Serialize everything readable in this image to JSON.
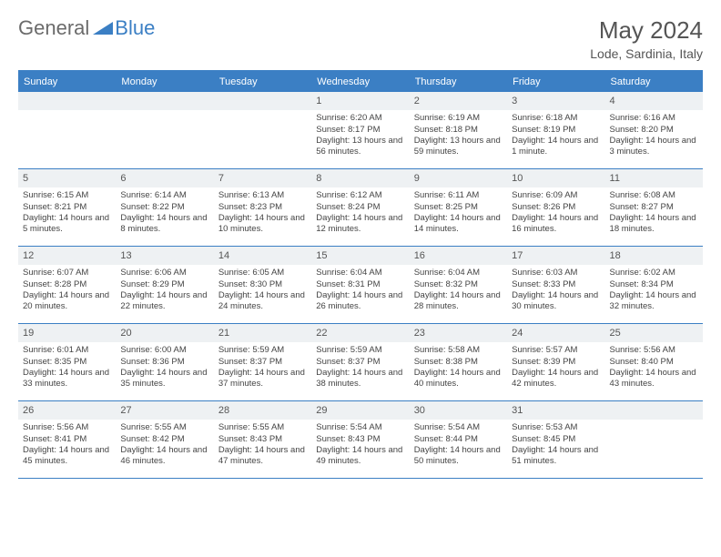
{
  "logo": {
    "text1": "General",
    "text2": "Blue"
  },
  "title": "May 2024",
  "location": "Lode, Sardinia, Italy",
  "colors": {
    "header_bg": "#3b7fc4",
    "header_text": "#ffffff",
    "daynum_bg": "#eef1f3",
    "border": "#3b7fc4",
    "body_text": "#444444",
    "title_text": "#555555"
  },
  "day_headers": [
    "Sunday",
    "Monday",
    "Tuesday",
    "Wednesday",
    "Thursday",
    "Friday",
    "Saturday"
  ],
  "weeks": [
    [
      {
        "n": "",
        "sr": "",
        "ss": "",
        "dl": ""
      },
      {
        "n": "",
        "sr": "",
        "ss": "",
        "dl": ""
      },
      {
        "n": "",
        "sr": "",
        "ss": "",
        "dl": ""
      },
      {
        "n": "1",
        "sr": "6:20 AM",
        "ss": "8:17 PM",
        "dl": "13 hours and 56 minutes."
      },
      {
        "n": "2",
        "sr": "6:19 AM",
        "ss": "8:18 PM",
        "dl": "13 hours and 59 minutes."
      },
      {
        "n": "3",
        "sr": "6:18 AM",
        "ss": "8:19 PM",
        "dl": "14 hours and 1 minute."
      },
      {
        "n": "4",
        "sr": "6:16 AM",
        "ss": "8:20 PM",
        "dl": "14 hours and 3 minutes."
      }
    ],
    [
      {
        "n": "5",
        "sr": "6:15 AM",
        "ss": "8:21 PM",
        "dl": "14 hours and 5 minutes."
      },
      {
        "n": "6",
        "sr": "6:14 AM",
        "ss": "8:22 PM",
        "dl": "14 hours and 8 minutes."
      },
      {
        "n": "7",
        "sr": "6:13 AM",
        "ss": "8:23 PM",
        "dl": "14 hours and 10 minutes."
      },
      {
        "n": "8",
        "sr": "6:12 AM",
        "ss": "8:24 PM",
        "dl": "14 hours and 12 minutes."
      },
      {
        "n": "9",
        "sr": "6:11 AM",
        "ss": "8:25 PM",
        "dl": "14 hours and 14 minutes."
      },
      {
        "n": "10",
        "sr": "6:09 AM",
        "ss": "8:26 PM",
        "dl": "14 hours and 16 minutes."
      },
      {
        "n": "11",
        "sr": "6:08 AM",
        "ss": "8:27 PM",
        "dl": "14 hours and 18 minutes."
      }
    ],
    [
      {
        "n": "12",
        "sr": "6:07 AM",
        "ss": "8:28 PM",
        "dl": "14 hours and 20 minutes."
      },
      {
        "n": "13",
        "sr": "6:06 AM",
        "ss": "8:29 PM",
        "dl": "14 hours and 22 minutes."
      },
      {
        "n": "14",
        "sr": "6:05 AM",
        "ss": "8:30 PM",
        "dl": "14 hours and 24 minutes."
      },
      {
        "n": "15",
        "sr": "6:04 AM",
        "ss": "8:31 PM",
        "dl": "14 hours and 26 minutes."
      },
      {
        "n": "16",
        "sr": "6:04 AM",
        "ss": "8:32 PM",
        "dl": "14 hours and 28 minutes."
      },
      {
        "n": "17",
        "sr": "6:03 AM",
        "ss": "8:33 PM",
        "dl": "14 hours and 30 minutes."
      },
      {
        "n": "18",
        "sr": "6:02 AM",
        "ss": "8:34 PM",
        "dl": "14 hours and 32 minutes."
      }
    ],
    [
      {
        "n": "19",
        "sr": "6:01 AM",
        "ss": "8:35 PM",
        "dl": "14 hours and 33 minutes."
      },
      {
        "n": "20",
        "sr": "6:00 AM",
        "ss": "8:36 PM",
        "dl": "14 hours and 35 minutes."
      },
      {
        "n": "21",
        "sr": "5:59 AM",
        "ss": "8:37 PM",
        "dl": "14 hours and 37 minutes."
      },
      {
        "n": "22",
        "sr": "5:59 AM",
        "ss": "8:37 PM",
        "dl": "14 hours and 38 minutes."
      },
      {
        "n": "23",
        "sr": "5:58 AM",
        "ss": "8:38 PM",
        "dl": "14 hours and 40 minutes."
      },
      {
        "n": "24",
        "sr": "5:57 AM",
        "ss": "8:39 PM",
        "dl": "14 hours and 42 minutes."
      },
      {
        "n": "25",
        "sr": "5:56 AM",
        "ss": "8:40 PM",
        "dl": "14 hours and 43 minutes."
      }
    ],
    [
      {
        "n": "26",
        "sr": "5:56 AM",
        "ss": "8:41 PM",
        "dl": "14 hours and 45 minutes."
      },
      {
        "n": "27",
        "sr": "5:55 AM",
        "ss": "8:42 PM",
        "dl": "14 hours and 46 minutes."
      },
      {
        "n": "28",
        "sr": "5:55 AM",
        "ss": "8:43 PM",
        "dl": "14 hours and 47 minutes."
      },
      {
        "n": "29",
        "sr": "5:54 AM",
        "ss": "8:43 PM",
        "dl": "14 hours and 49 minutes."
      },
      {
        "n": "30",
        "sr": "5:54 AM",
        "ss": "8:44 PM",
        "dl": "14 hours and 50 minutes."
      },
      {
        "n": "31",
        "sr": "5:53 AM",
        "ss": "8:45 PM",
        "dl": "14 hours and 51 minutes."
      },
      {
        "n": "",
        "sr": "",
        "ss": "",
        "dl": ""
      }
    ]
  ],
  "labels": {
    "sunrise": "Sunrise: ",
    "sunset": "Sunset: ",
    "daylight": "Daylight: "
  }
}
